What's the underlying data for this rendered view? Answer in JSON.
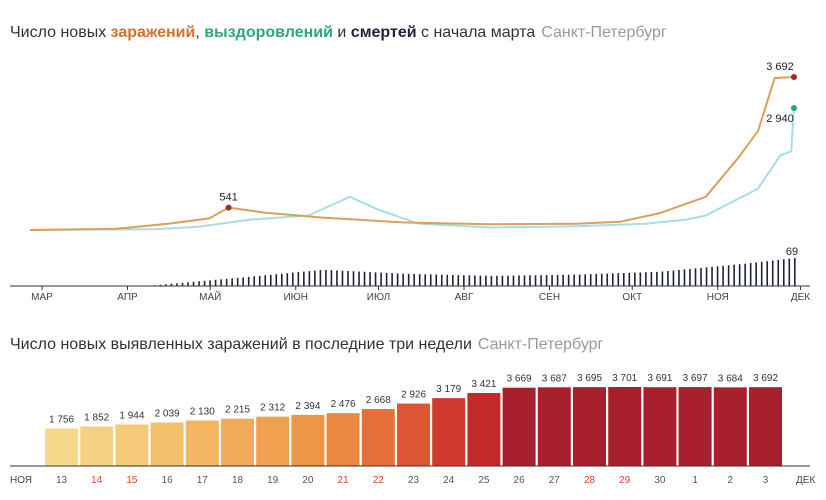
{
  "chart1": {
    "title_prefix": "Число новых ",
    "title_infections": "заражений",
    "title_sep1": ", ",
    "title_recoveries": "выздоровлений",
    "title_sep2": " и ",
    "title_deaths": "смертей",
    "title_suffix": " с начала марта",
    "city": "Санкт-Петербург",
    "colors": {
      "infections": "#d9a05b",
      "recoveries": "#a8dde3",
      "deaths": "#1e2237",
      "accent_inf": "#a12c2c",
      "accent_rec": "#27a37e"
    },
    "months": [
      "МАР",
      "АПР",
      "МАЙ",
      "ИЮН",
      "ИЮЛ",
      "АВГ",
      "СЕН",
      "ОКТ",
      "НОЯ",
      "ДЕК"
    ],
    "labels": {
      "peak_may": "541",
      "last_infections": "3 692",
      "last_recoveries": "2 940",
      "last_deaths": "69"
    }
  },
  "chart2": {
    "title": "Число новых выявленных заражений в последние три недели",
    "city": "Санкт-Петербург",
    "left_axis": "НОЯ",
    "right_axis": "ДЕК"
  },
  "chart_data": [
    {
      "type": "line",
      "title": "Число новых заражений, выздоровлений и смертей с начала марта",
      "x_axis": "date",
      "x_range": [
        "2020-03-01",
        "2020-12-03"
      ],
      "ticks": [
        "МАР",
        "АПР",
        "МАЙ",
        "ИЮН",
        "ИЮЛ",
        "АВГ",
        "СЕН",
        "ОКТ",
        "НОЯ",
        "ДЕК"
      ],
      "series": [
        {
          "name": "заражений",
          "color": "#d9a05b",
          "points": [
            [
              "2020-03-01",
              0
            ],
            [
              "2020-04-01",
              30
            ],
            [
              "2020-04-20",
              150
            ],
            [
              "2020-05-05",
              280
            ],
            [
              "2020-05-12",
              541
            ],
            [
              "2020-05-25",
              420
            ],
            [
              "2020-06-15",
              300
            ],
            [
              "2020-07-15",
              180
            ],
            [
              "2020-08-15",
              140
            ],
            [
              "2020-09-15",
              150
            ],
            [
              "2020-10-01",
              200
            ],
            [
              "2020-10-15",
              400
            ],
            [
              "2020-11-01",
              800
            ],
            [
              "2020-11-13",
              1756
            ],
            [
              "2020-11-20",
              2394
            ],
            [
              "2020-11-26",
              3669
            ],
            [
              "2020-12-03",
              3692
            ]
          ]
        },
        {
          "name": "выздоровлений",
          "color": "#a8dde3",
          "points": [
            [
              "2020-03-01",
              0
            ],
            [
              "2020-04-15",
              20
            ],
            [
              "2020-05-01",
              80
            ],
            [
              "2020-05-20",
              250
            ],
            [
              "2020-06-10",
              350
            ],
            [
              "2020-06-25",
              800
            ],
            [
              "2020-07-05",
              500
            ],
            [
              "2020-07-20",
              150
            ],
            [
              "2020-08-15",
              60
            ],
            [
              "2020-09-15",
              90
            ],
            [
              "2020-10-10",
              150
            ],
            [
              "2020-10-25",
              250
            ],
            [
              "2020-11-01",
              350
            ],
            [
              "2020-11-20",
              1000
            ],
            [
              "2020-11-28",
              1800
            ],
            [
              "2020-12-02",
              1900
            ],
            [
              "2020-12-03",
              2940
            ]
          ]
        },
        {
          "name": "смертей",
          "color": "#1e2237",
          "points": [
            [
              "2020-04-15",
              2
            ],
            [
              "2020-05-15",
              20
            ],
            [
              "2020-06-15",
              40
            ],
            [
              "2020-07-15",
              30
            ],
            [
              "2020-08-15",
              25
            ],
            [
              "2020-09-15",
              28
            ],
            [
              "2020-10-15",
              35
            ],
            [
              "2020-11-15",
              55
            ],
            [
              "2020-12-03",
              69
            ]
          ]
        }
      ],
      "annotations": [
        {
          "date": "2020-05-12",
          "value": 541,
          "text": "541"
        },
        {
          "date": "2020-12-03",
          "value": 3692,
          "text": "3 692"
        },
        {
          "date": "2020-12-03",
          "value": 2940,
          "text": "2 940"
        },
        {
          "date": "2020-12-03",
          "value": 69,
          "text": "69"
        }
      ]
    },
    {
      "type": "bar",
      "title": "Число новых выявленных заражений в последние три недели",
      "categories": [
        "13",
        "14",
        "15",
        "16",
        "17",
        "18",
        "19",
        "20",
        "21",
        "22",
        "23",
        "24",
        "25",
        "26",
        "27",
        "28",
        "29",
        "30",
        "1",
        "2",
        "3"
      ],
      "weekend_days": [
        "14",
        "15",
        "21",
        "22",
        "28",
        "29"
      ],
      "values": [
        1756,
        1852,
        1944,
        2039,
        2130,
        2215,
        2312,
        2394,
        2476,
        2668,
        2926,
        3179,
        3421,
        3669,
        3687,
        3695,
        3701,
        3691,
        3697,
        3684,
        3692
      ],
      "value_labels": [
        "1 756",
        "1 852",
        "1 944",
        "2 039",
        "2 130",
        "2 215",
        "2 312",
        "2 394",
        "2 476",
        "2 668",
        "2 926",
        "3 179",
        "3 421",
        "3 669",
        "3 687",
        "3 695",
        "3 701",
        "3 691",
        "3 697",
        "3 684",
        "3 692"
      ],
      "ylim": [
        0,
        3701
      ],
      "colors": [
        "#f5d88a",
        "#f5d283",
        "#f4ca78",
        "#f3c06b",
        "#f2b662",
        "#f1ab58",
        "#f0a04e",
        "#ee9546",
        "#ec8740",
        "#e7703a",
        "#de5534",
        "#d03a2d",
        "#c12b2a",
        "#a8202e",
        "#a8202e",
        "#a8202e",
        "#a8202e",
        "#a8202e",
        "#a8202e",
        "#a8202e",
        "#a8202e"
      ],
      "normal_tick_color": "#555555",
      "weekend_tick_color": "#d9481f"
    }
  ]
}
